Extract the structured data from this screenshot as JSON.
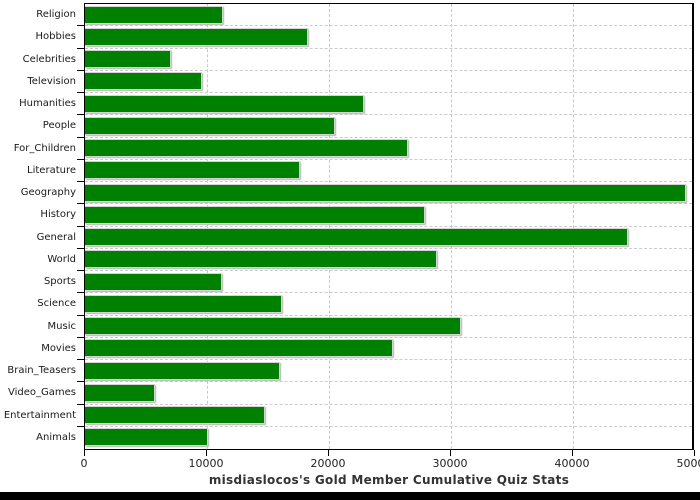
{
  "chart_data": {
    "type": "bar",
    "orientation": "horizontal",
    "title": "misdiaslocos's Gold Member Cumulative Quiz Stats",
    "categories": [
      "Religion",
      "Hobbies",
      "Celebrities",
      "Television",
      "Humanities",
      "People",
      "For_Children",
      "Literature",
      "Geography",
      "History",
      "General",
      "World",
      "Sports",
      "Science",
      "Music",
      "Movies",
      "Brain_Teasers",
      "Video_Games",
      "Entertainment",
      "Animals"
    ],
    "values": [
      11400,
      18400,
      7100,
      9600,
      23000,
      20600,
      26600,
      17700,
      49500,
      28000,
      44700,
      29000,
      11300,
      16200,
      31000,
      25400,
      16100,
      5800,
      14800,
      10100
    ],
    "xlabel": "",
    "ylabel": "",
    "xlim": [
      0,
      50000
    ],
    "x_ticks": [
      0,
      10000,
      20000,
      30000,
      40000,
      50000
    ],
    "x_tick_labels": [
      "0",
      "10000",
      "20000",
      "30000",
      "40000",
      "50000"
    ],
    "grid": "dashed",
    "legend": "none",
    "bar_color": "#008000",
    "grid_color": "#cccccc",
    "border_color": "#000000",
    "background_color": "#ffffff"
  }
}
